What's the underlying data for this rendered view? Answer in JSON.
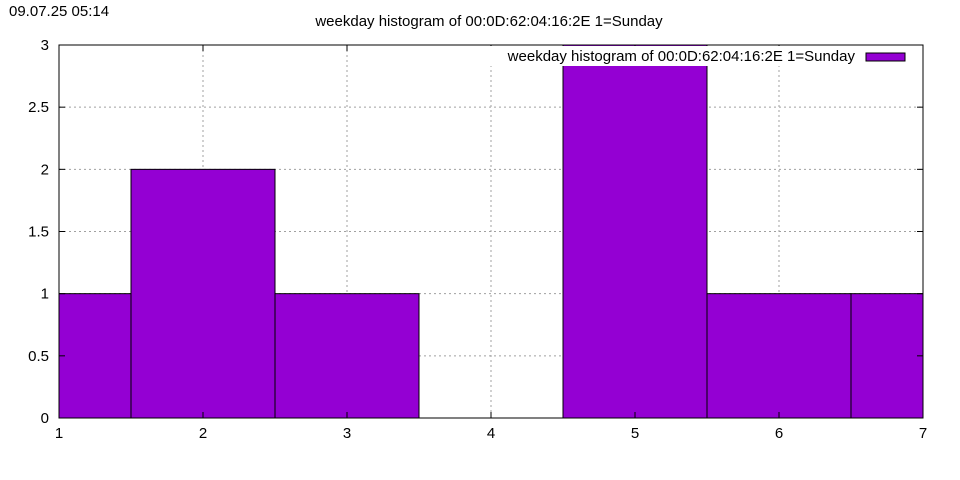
{
  "timestamp": "09.07.25 05:14",
  "chart_data": {
    "type": "bar",
    "title": "weekday histogram of 00:0D:62:04:16:2E 1=Sunday",
    "xlabel": "",
    "ylabel": "",
    "xlim": [
      1,
      7
    ],
    "ylim": [
      0,
      3
    ],
    "x_ticks": [
      "1",
      "2",
      "3",
      "4",
      "5",
      "6",
      "7"
    ],
    "y_ticks": [
      "0",
      "0.5",
      "1",
      "1.5",
      "2",
      "2.5",
      "3"
    ],
    "grid": true,
    "legend_position": "top-right",
    "series": [
      {
        "name": "weekday histogram of 00:0D:62:04:16:2E 1=Sunday",
        "color": "#9400D3",
        "x": [
          1,
          2,
          3,
          4,
          5,
          6,
          7
        ],
        "values": [
          1,
          2,
          1,
          0,
          3,
          1,
          1
        ]
      }
    ]
  }
}
